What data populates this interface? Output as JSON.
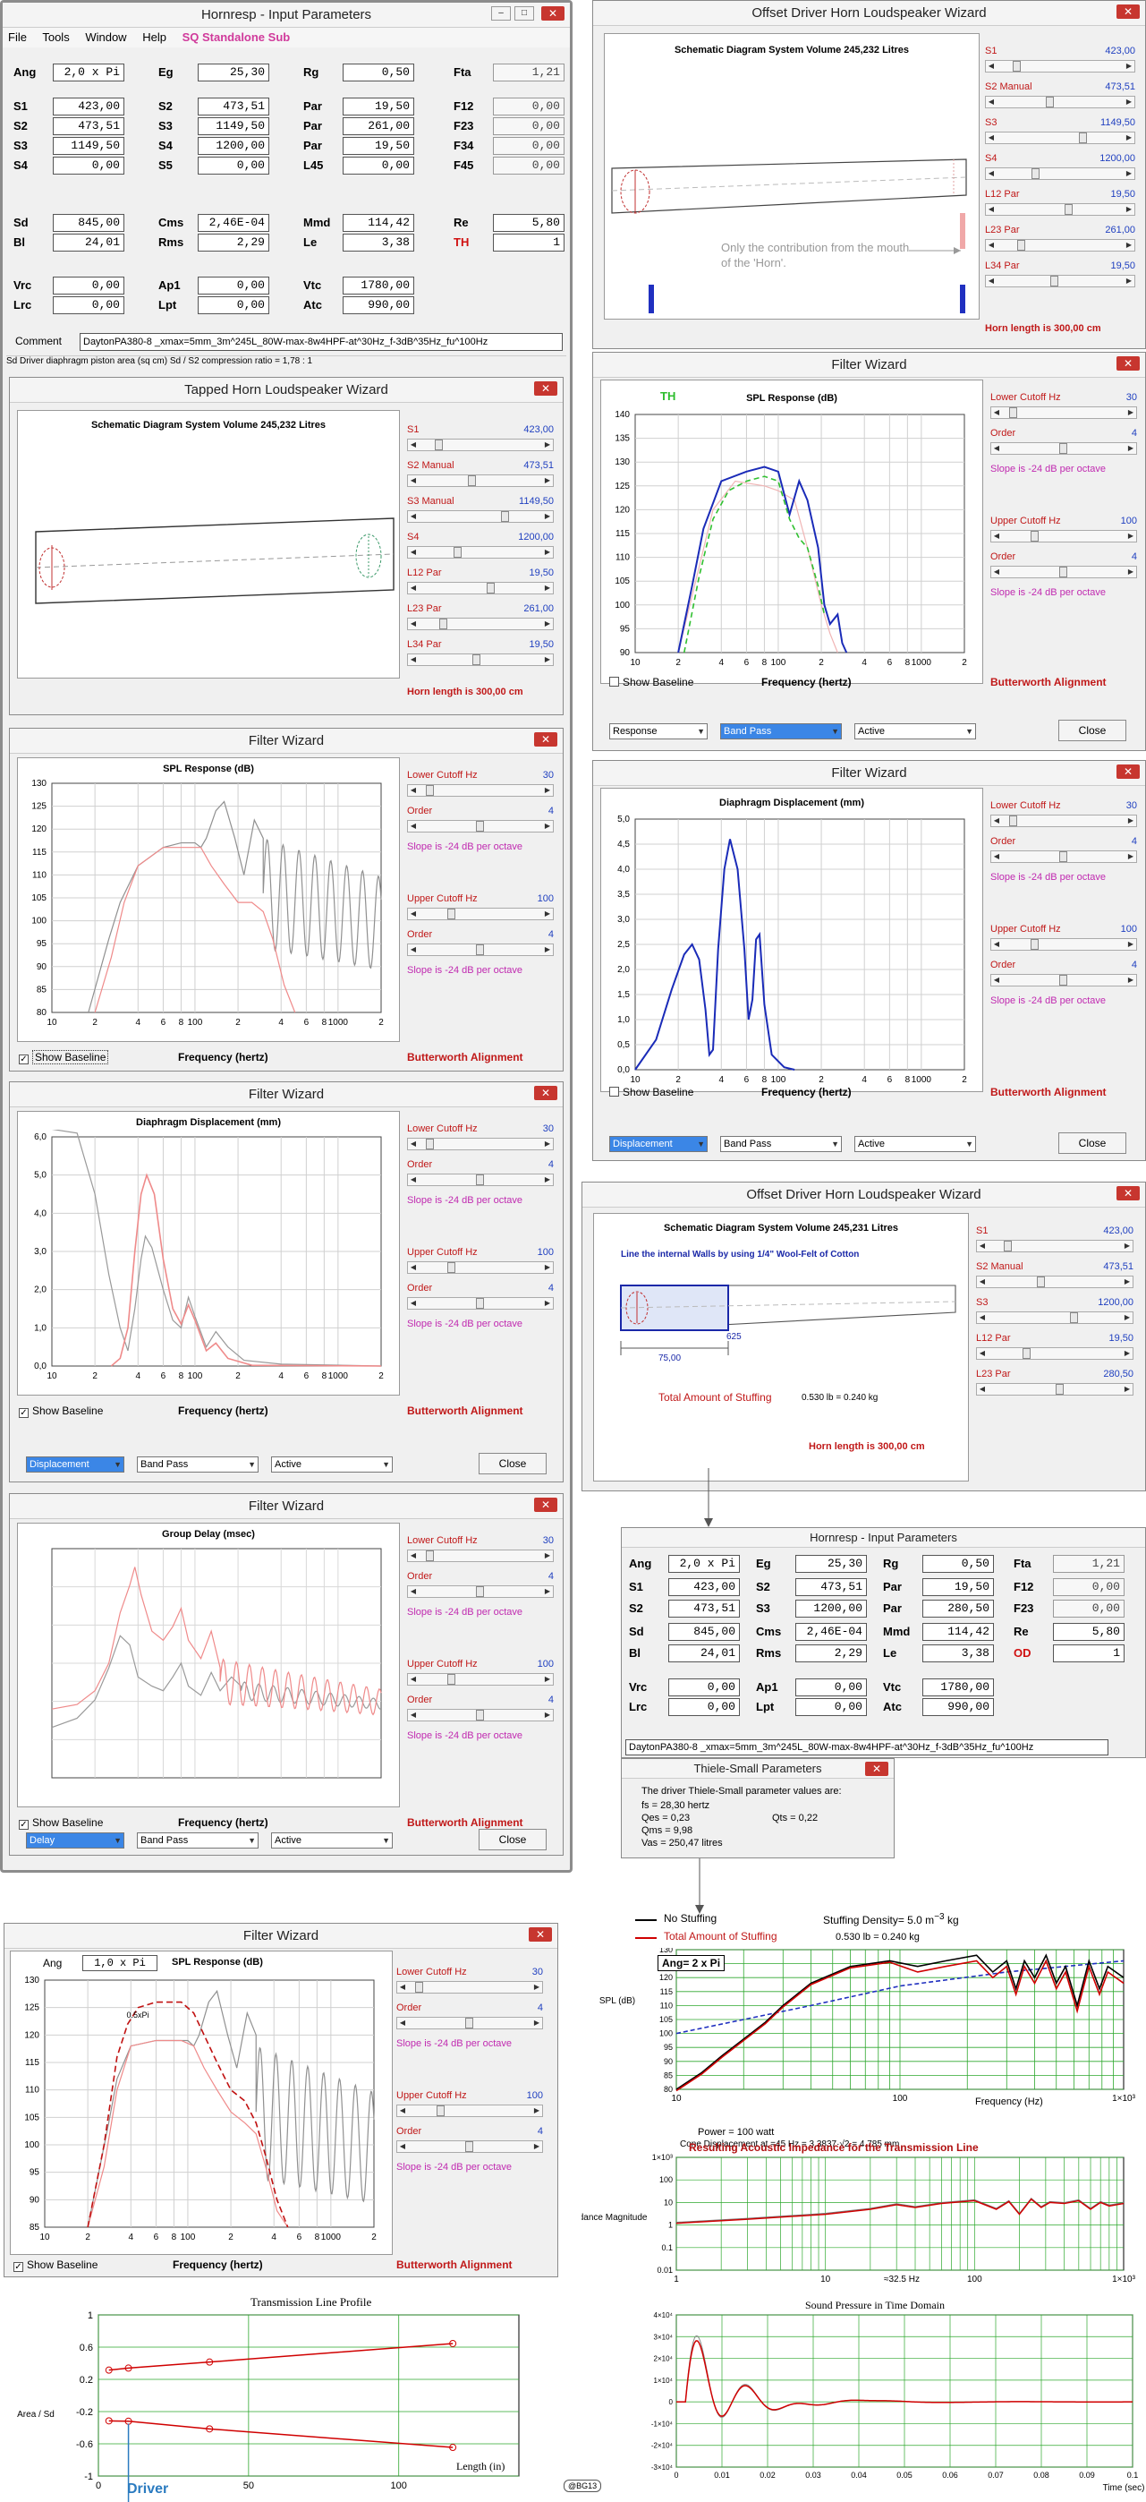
{
  "input_params_main": {
    "title": "Hornresp - Input Parameters",
    "menu": [
      "File",
      "Tools",
      "Window",
      "Help"
    ],
    "menu_highlight": "SQ Standalone Sub",
    "rows": [
      [
        {
          "l": "Ang",
          "v": "2,0 x Pi"
        },
        {
          "l": "Eg",
          "v": "25,30"
        },
        {
          "l": "Rg",
          "v": "0,50"
        },
        {
          "l": "Fta",
          "v": "1,21",
          "ro": true
        }
      ],
      [
        {
          "l": "S1",
          "v": "423,00"
        },
        {
          "l": "S2",
          "v": "473,51"
        },
        {
          "l": "Par",
          "v": "19,50"
        },
        {
          "l": "F12",
          "v": "0,00",
          "ro": true
        }
      ],
      [
        {
          "l": "S2",
          "v": "473,51"
        },
        {
          "l": "S3",
          "v": "1149,50"
        },
        {
          "l": "Par",
          "v": "261,00"
        },
        {
          "l": "F23",
          "v": "0,00",
          "ro": true
        }
      ],
      [
        {
          "l": "S3",
          "v": "1149,50"
        },
        {
          "l": "S4",
          "v": "1200,00"
        },
        {
          "l": "Par",
          "v": "19,50"
        },
        {
          "l": "F34",
          "v": "0,00",
          "ro": true
        }
      ],
      [
        {
          "l": "S4",
          "v": "0,00"
        },
        {
          "l": "S5",
          "v": "0,00"
        },
        {
          "l": "L45",
          "v": "0,00"
        },
        {
          "l": "F45",
          "v": "0,00",
          "ro": true
        }
      ],
      [
        {
          "l": "Sd",
          "v": "845,00"
        },
        {
          "l": "Cms",
          "v": "2,46E-04"
        },
        {
          "l": "Mmd",
          "v": "114,42"
        },
        {
          "l": "Re",
          "v": "5,80"
        }
      ],
      [
        {
          "l": "Bl",
          "v": "24,01"
        },
        {
          "l": "Rms",
          "v": "2,29"
        },
        {
          "l": "Le",
          "v": "3,38"
        },
        {
          "l": "TH",
          "v": "1",
          "red": true
        }
      ],
      [
        {
          "l": "Vrc",
          "v": "0,00"
        },
        {
          "l": "Ap1",
          "v": "0,00"
        },
        {
          "l": "Vtc",
          "v": "1780,00"
        }
      ],
      [
        {
          "l": "Lrc",
          "v": "0,00"
        },
        {
          "l": "Lpt",
          "v": "0,00"
        },
        {
          "l": "Atc",
          "v": "990,00"
        }
      ]
    ],
    "comment_label": "Comment",
    "comment": "DaytonPA380-8 _xmax=5mm_3m^245L_80W-max-8w4HPF-at^30Hz_f-3dB^35Hz_fu^100Hz",
    "status": "Sd  Driver diaphragm piston area (sq cm)   Sd / S2 compression ratio = 1,78 : 1"
  },
  "tapped_horn_wizard": {
    "title": "Tapped Horn Loudspeaker Wizard",
    "schematic_title": "Schematic Diagram   System Volume 245,232 Litres",
    "sliders": [
      {
        "label": "S1",
        "value": "423,00",
        "red": true
      },
      {
        "label": "S2  Manual",
        "value": "473,51",
        "red": true
      },
      {
        "label": "S3  Manual",
        "value": "1149,50",
        "red": true
      },
      {
        "label": "S4",
        "value": "1200,00",
        "red": true
      },
      {
        "label": "L12  Par",
        "value": "19,50",
        "red": true
      },
      {
        "label": "L23  Par",
        "value": "261,00",
        "red": true
      },
      {
        "label": "L34  Par",
        "value": "19,50",
        "red": true
      }
    ],
    "horn_length": "Horn length is 300,00 cm"
  },
  "offset_wizard_1": {
    "title": "Offset Driver Horn Loudspeaker Wizard",
    "schematic_title": "Schematic Diagram   System Volume 245,232 Litres",
    "note": "Only the contribution from the mouth of the 'Horn'.",
    "sliders": [
      {
        "label": "S1",
        "value": "423,00"
      },
      {
        "label": "S2  Manual",
        "value": "473,51"
      },
      {
        "label": "S3",
        "value": "1149,50"
      },
      {
        "label": "S4",
        "value": "1200,00"
      },
      {
        "label": "L12  Par",
        "value": "19,50"
      },
      {
        "label": "L23  Par",
        "value": "261,00"
      },
      {
        "label": "L34  Par",
        "value": "19,50"
      }
    ],
    "horn_length": "Horn length is 300,00 cm"
  },
  "filter_common": {
    "title": "Filter Wizard",
    "lower_cutoff": "Lower Cutoff  Hz",
    "lower_value": "30",
    "upper_cutoff": "Upper Cutoff  Hz",
    "upper_value": "100",
    "order": "Order",
    "order_value": "4",
    "slope": "Slope is -24 dB per octave",
    "alignment": "Butterworth Alignment",
    "show_baseline": "Show Baseline",
    "xlabel": "Frequency (hertz)",
    "close": "Close",
    "passband": "Band Pass",
    "active": "Active",
    "response": "Response",
    "displacement": "Displacement",
    "delay": "Delay"
  },
  "charts_text": {
    "spl_title": "SPL Response (dB)",
    "disp_title": "Diaphragm Displacement (mm)",
    "gd_title": "Group Delay (msec)",
    "th_label": "TH",
    "ang_label": "Ang",
    "ang_value": "1,0 x Pi",
    "half_pi": "0.5xPi",
    "spl_y": [
      "130",
      "125",
      "120",
      "115",
      "110",
      "105",
      "100",
      "95",
      "90",
      "85",
      "80"
    ],
    "spl_y2": [
      "140",
      "135",
      "130",
      "125",
      "120",
      "115",
      "110",
      "105",
      "100",
      "95",
      "90"
    ],
    "spl_y3": [
      "130",
      "125",
      "120",
      "115",
      "110",
      "105",
      "100",
      "95",
      "90",
      "85"
    ],
    "disp_y": [
      "6,0",
      "5,0",
      "4,0",
      "3,0",
      "2,0",
      "1,0",
      "0,0"
    ],
    "disp_y2": [
      "5,0",
      "4,5",
      "4,0",
      "3,5",
      "3,0",
      "2,5",
      "2,0",
      "1,5",
      "1,0",
      "0,5",
      "0,0"
    ],
    "x_ticks": [
      "10",
      "2",
      "4",
      "6",
      "8",
      "100",
      "2",
      "4",
      "6",
      "8",
      "1000",
      "2"
    ],
    "x_ticks_short": [
      "10",
      "2",
      "4",
      "6",
      "8",
      "100",
      "2",
      "4",
      "6",
      "8",
      "1000",
      "2"
    ]
  },
  "offset_wizard_2": {
    "title": "Offset Driver Horn Loudspeaker Wizard",
    "schematic_title": "Schematic Diagram   System Volume 245,231 Litres",
    "wool_note": "Line the internal Walls by using 1/4\" Wool-Felt of Cotton",
    "dim1": "625",
    "dim2": "75,00",
    "stuffing_label": "Total Amount of Stuffing",
    "stuffing_value": "0.530 lb = 0.240 kg",
    "horn_length": "Horn length is 300,00 cm",
    "sliders": [
      {
        "label": "S1",
        "value": "423,00"
      },
      {
        "label": "S2  Manual",
        "value": "473,51"
      },
      {
        "label": "S3",
        "value": "1200,00"
      },
      {
        "label": "L12  Par",
        "value": "19,50"
      },
      {
        "label": "L23  Par",
        "value": "280,50"
      }
    ]
  },
  "input_params_2": {
    "title": "Hornresp - Input Parameters",
    "rows": [
      [
        {
          "l": "Ang",
          "v": "2,0 x Pi"
        },
        {
          "l": "Eg",
          "v": "25,30"
        },
        {
          "l": "Rg",
          "v": "0,50"
        },
        {
          "l": "Fta",
          "v": "1,21",
          "ro": true
        }
      ],
      [
        {
          "l": "S1",
          "v": "423,00"
        },
        {
          "l": "S2",
          "v": "473,51"
        },
        {
          "l": "Par",
          "v": "19,50"
        },
        {
          "l": "F12",
          "v": "0,00",
          "ro": true
        }
      ],
      [
        {
          "l": "S2",
          "v": "473,51"
        },
        {
          "l": "S3",
          "v": "1200,00"
        },
        {
          "l": "Par",
          "v": "280,50"
        },
        {
          "l": "F23",
          "v": "0,00",
          "ro": true
        }
      ],
      [
        {
          "l": "Sd",
          "v": "845,00"
        },
        {
          "l": "Cms",
          "v": "2,46E-04"
        },
        {
          "l": "Mmd",
          "v": "114,42"
        },
        {
          "l": "Re",
          "v": "5,80"
        }
      ],
      [
        {
          "l": "Bl",
          "v": "24,01"
        },
        {
          "l": "Rms",
          "v": "2,29"
        },
        {
          "l": "Le",
          "v": "3,38"
        },
        {
          "l": "OD",
          "v": "1",
          "red": true
        }
      ],
      [
        {
          "l": "Vrc",
          "v": "0,00"
        },
        {
          "l": "Ap1",
          "v": "0,00"
        },
        {
          "l": "Vtc",
          "v": "1780,00"
        }
      ],
      [
        {
          "l": "Lrc",
          "v": "0,00"
        },
        {
          "l": "Lpt",
          "v": "0,00"
        },
        {
          "l": "Atc",
          "v": "990,00"
        }
      ]
    ],
    "comment": "DaytonPA380-8 _xmax=5mm_3m^245L_80W-max-8w4HPF-at^30Hz_f-3dB^35Hz_fu^100Hz"
  },
  "thiele_small": {
    "title": "Thiele-Small Parameters",
    "intro": "The driver Thiele-Small parameter values are:",
    "fs": "fs = 28,30 hertz",
    "qes": "Qes = 0,23",
    "qts": "Qts = 0,22",
    "qms": "Qms = 9,98",
    "vas": "Vas = 250,47 litres"
  },
  "mathcad": {
    "legend_no": "No Stuffing",
    "legend_total": "Total Amount of Stuffing",
    "density": "Stuffing Density=  5.0  m",
    "density_unit": "kg",
    "amount": "0.530 lb = 0.240 kg",
    "ang_box": "Ang= 2 x Pi",
    "spl_ylabel": "SPL (dB)",
    "spl_y": [
      "130",
      "125",
      "120",
      "115",
      "110",
      "105",
      "100",
      "95",
      "90",
      "85",
      "80"
    ],
    "spl_x": [
      "10",
      "100",
      "1×10³"
    ],
    "power": "Power = 100 watt",
    "freq": "Frequency (Hz)",
    "cone_disp": "Cone Displacement at =45 Hz =   3.3837·√2 = 4.785    mm",
    "impedance_title": "Resulting Acoustic Impedance for the Transmission Line",
    "imp_ylabel": "Impedance Magnitude",
    "imp_y": [
      "1×10³",
      "100",
      "10",
      "1",
      "0.1",
      "0.01"
    ],
    "imp_x": [
      "1",
      "10",
      "≈32.5 Hz",
      "100",
      "1×10³"
    ],
    "tl_title": "Transmission Line Profile",
    "tl_ylabel": "Area / Sd",
    "tl_y": [
      "1",
      "0.6",
      "0.2",
      "-0.2",
      "-0.6",
      "-1"
    ],
    "tl_x": [
      "0",
      "50",
      "100"
    ],
    "tl_xlabel": "Length (in)",
    "driver": "Driver",
    "sp_title": "Sound Pressure in Time Domain",
    "sp_y": [
      "4×10⁴",
      "3×10⁴",
      "2×10⁴",
      "1×10⁴",
      "0",
      "-1×10⁴",
      "-2×10⁴",
      "-3×10⁴"
    ],
    "sp_x": [
      "0",
      "0.01",
      "0.02",
      "0.03",
      "0.04",
      "0.05",
      "0.06",
      "0.07",
      "0.08",
      "0.09",
      "0.1"
    ],
    "sp_xlabel": "Time (sec)",
    "signature": "@BG13"
  }
}
